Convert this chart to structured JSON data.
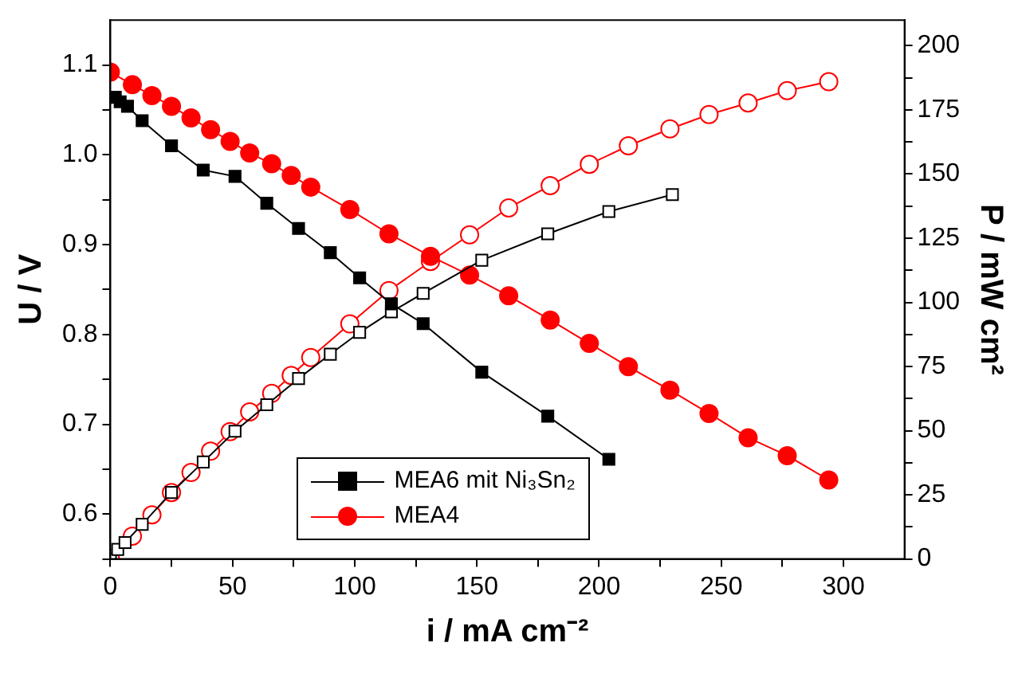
{
  "chart_data": {
    "type": "line",
    "xlabel": "i / mA cm⁻²",
    "ylabel": "U / V",
    "y2label": "P / mW cm²",
    "xlim": [
      0,
      325
    ],
    "xticks": [
      0,
      {
        "value": 25,
        "label": null
      },
      50,
      {
        "value": 75,
        "label": null
      },
      100,
      {
        "value": 125,
        "label": null
      },
      150,
      {
        "value": 175,
        "label": null
      },
      200,
      {
        "value": 225,
        "label": null
      },
      250,
      {
        "value": 275,
        "label": null
      },
      300
    ],
    "ylim": [
      0.55,
      1.15
    ],
    "yticks": [
      {
        "value": 0.55,
        "label": null
      },
      0.6,
      {
        "value": 0.65,
        "label": null
      },
      0.7,
      {
        "value": 0.75,
        "label": null
      },
      0.8,
      {
        "value": 0.85,
        "label": null
      },
      0.9,
      {
        "value": 0.95,
        "label": null
      },
      {
        "value": 1.0,
        "label": "1.0"
      },
      {
        "value": 1.05,
        "label": null
      },
      1.1
    ],
    "y2lim": [
      0,
      210
    ],
    "y2ticks": [
      0,
      {
        "value": 12.5,
        "label": null
      },
      25,
      {
        "value": 37.5,
        "label": null
      },
      50,
      {
        "value": 62.5,
        "label": null
      },
      75,
      {
        "value": 87.5,
        "label": null
      },
      100,
      {
        "value": 112.5,
        "label": null
      },
      125,
      {
        "value": 137.5,
        "label": null
      },
      150,
      {
        "value": 162.5,
        "label": null
      },
      175,
      {
        "value": 187.5,
        "label": null
      },
      200
    ],
    "grid": false,
    "legend": "bottom",
    "line_style": "solid",
    "series": [
      {
        "name": "MEA6 mit Ni₃Sn₂",
        "color": "#000000",
        "marker": "square",
        "x": [
          2,
          4,
          7,
          13,
          25,
          38,
          51,
          64,
          77,
          90,
          102,
          115,
          128,
          152,
          179,
          204
        ],
        "values": [
          1.064,
          1.059,
          1.054,
          1.038,
          1.01,
          0.983,
          0.976,
          0.946,
          0.918,
          0.891,
          0.863,
          0.834,
          0.812,
          0.758,
          0.709,
          0.661
        ]
      },
      {
        "color": "#000000",
        "marker": "square",
        "axis": "y2",
        "x": [
          0,
          3,
          6,
          13,
          25,
          38,
          51,
          64,
          77,
          90,
          102,
          115,
          128,
          152,
          179,
          204,
          230
        ],
        "values": [
          0,
          3.7,
          6.4,
          13.5,
          25.9,
          37.8,
          49.8,
          60.1,
          70.3,
          79.8,
          88.3,
          96.3,
          103.5,
          116.4,
          126.7,
          135.4,
          142.0
        ]
      },
      {
        "name": "MEA4",
        "color": "#ff0000",
        "marker": "circle",
        "x": [
          0,
          9,
          17,
          25,
          33,
          41,
          49,
          57,
          66,
          74,
          82,
          98,
          114,
          131,
          147,
          163,
          180,
          196,
          212,
          229,
          245,
          261,
          277,
          294
        ],
        "values": [
          1.092,
          1.078,
          1.066,
          1.054,
          1.041,
          1.028,
          1.015,
          1.002,
          0.99,
          0.977,
          0.964,
          0.939,
          0.912,
          0.887,
          0.866,
          0.843,
          0.816,
          0.79,
          0.764,
          0.738,
          0.712,
          0.685,
          0.665,
          0.638
        ]
      },
      {
        "color": "#ff0000",
        "marker": "circle",
        "axis": "y2",
        "x": [
          0,
          9,
          17,
          25,
          33,
          41,
          49,
          57,
          66,
          74,
          82,
          98,
          114,
          131,
          147,
          163,
          180,
          196,
          212,
          229,
          245,
          261,
          277,
          294
        ],
        "values": [
          0,
          8.9,
          17.2,
          25.9,
          33.7,
          42.0,
          49.6,
          57.3,
          64.5,
          71.5,
          78.5,
          91.6,
          104.6,
          115.9,
          126.3,
          136.8,
          145.5,
          153.8,
          161.0,
          167.6,
          173.2,
          177.7,
          182.5,
          186.0
        ]
      }
    ]
  }
}
